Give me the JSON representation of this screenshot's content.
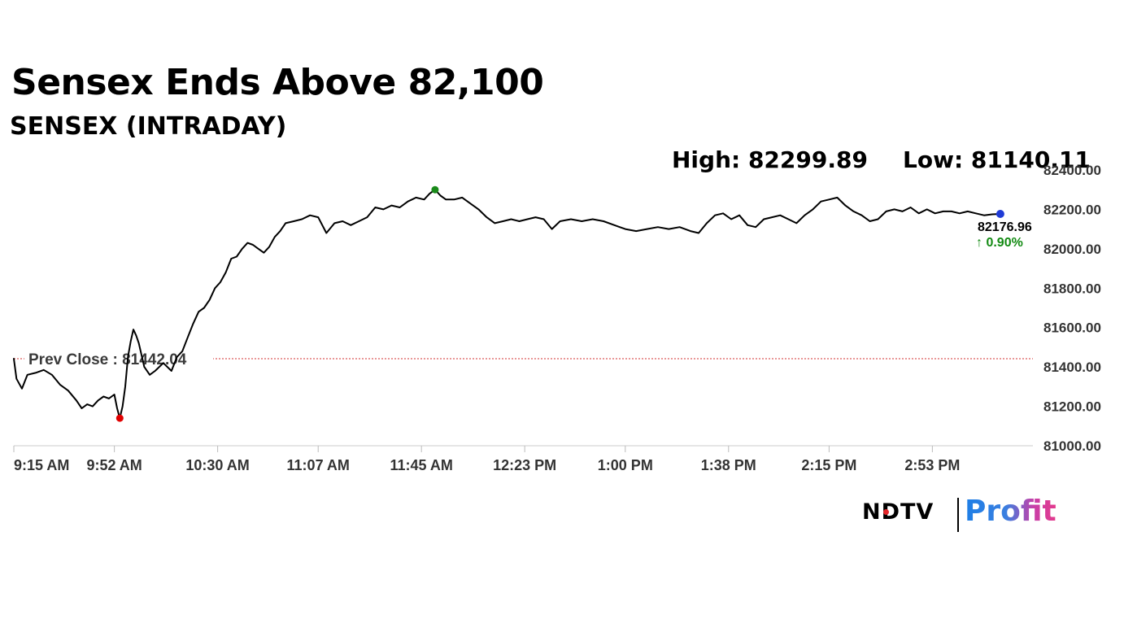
{
  "headline": "Sensex Ends Above 82,100",
  "subtitle": "SENSEX (INTRADAY)",
  "stats": {
    "high": "High: 82299.89",
    "low": "Low: 81140.11"
  },
  "brand": {
    "ndtv": "NDTV",
    "profit": "Profit"
  },
  "colors": {
    "line": "#000000",
    "high_marker": "#1a8a1a",
    "low_marker": "#e00000",
    "last_marker": "#1f3bd6",
    "prev_close_line": "#d33030",
    "change_up": "#128a12"
  },
  "chart_data": {
    "type": "line",
    "title": "SENSEX (INTRADAY)",
    "ylim": [
      81000,
      82400
    ],
    "y_ticks": [
      "82400.00",
      "82200.00",
      "82000.00",
      "81800.00",
      "81600.00",
      "81400.00",
      "81200.00",
      "81000.00"
    ],
    "x_ticks": [
      "9:15 AM",
      "9:52 AM",
      "10:30 AM",
      "11:07 AM",
      "11:45 AM",
      "12:23 PM",
      "1:00 PM",
      "1:38 PM",
      "2:15 PM",
      "2:53 PM"
    ],
    "grid": false,
    "prev_close": {
      "label": "Prev Close : 81442.04",
      "value": 81442.04
    },
    "high": {
      "time": "11:50 AM",
      "value": 82299.89
    },
    "low": {
      "time": "9:54 AM",
      "value": 81140.11
    },
    "last": {
      "value_label": "82176.96",
      "change_label": "↑ 0.90%",
      "value": 82176.96
    },
    "series": [
      {
        "points": [
          [
            "9:15 AM",
            81442
          ],
          [
            "9:16 AM",
            81340
          ],
          [
            "9:18 AM",
            81290
          ],
          [
            "9:20 AM",
            81360
          ],
          [
            "9:23 AM",
            81370
          ],
          [
            "9:26 AM",
            81385
          ],
          [
            "9:29 AM",
            81360
          ],
          [
            "9:32 AM",
            81310
          ],
          [
            "9:35 AM",
            81280
          ],
          [
            "9:38 AM",
            81230
          ],
          [
            "9:40 AM",
            81190
          ],
          [
            "9:42 AM",
            81210
          ],
          [
            "9:44 AM",
            81200
          ],
          [
            "9:46 AM",
            81230
          ],
          [
            "9:48 AM",
            81250
          ],
          [
            "9:50 AM",
            81240
          ],
          [
            "9:52 AM",
            81260
          ],
          [
            "9:53 AM",
            81190
          ],
          [
            "9:54 AM",
            81140
          ],
          [
            "9:55 AM",
            81200
          ],
          [
            "9:56 AM",
            81300
          ],
          [
            "9:57 AM",
            81450
          ],
          [
            "9:58 AM",
            81530
          ],
          [
            "9:59 AM",
            81590
          ],
          [
            "10:00 AM",
            81560
          ],
          [
            "10:01 AM",
            81520
          ],
          [
            "10:03 AM",
            81400
          ],
          [
            "10:05 AM",
            81360
          ],
          [
            "10:07 AM",
            81380
          ],
          [
            "10:10 AM",
            81420
          ],
          [
            "10:13 AM",
            81380
          ],
          [
            "10:15 AM",
            81450
          ],
          [
            "10:17 AM",
            81480
          ],
          [
            "10:19 AM",
            81550
          ],
          [
            "10:21 AM",
            81620
          ],
          [
            "10:23 AM",
            81680
          ],
          [
            "10:25 AM",
            81700
          ],
          [
            "10:27 AM",
            81740
          ],
          [
            "10:29 AM",
            81800
          ],
          [
            "10:31 AM",
            81830
          ],
          [
            "10:33 AM",
            81880
          ],
          [
            "10:35 AM",
            81950
          ],
          [
            "10:37 AM",
            81960
          ],
          [
            "10:39 AM",
            82000
          ],
          [
            "10:41 AM",
            82030
          ],
          [
            "10:43 AM",
            82020
          ],
          [
            "10:45 AM",
            82000
          ],
          [
            "10:47 AM",
            81980
          ],
          [
            "10:49 AM",
            82010
          ],
          [
            "10:51 AM",
            82060
          ],
          [
            "10:53 AM",
            82090
          ],
          [
            "10:55 AM",
            82130
          ],
          [
            "10:58 AM",
            82140
          ],
          [
            "11:01 AM",
            82150
          ],
          [
            "11:04 AM",
            82170
          ],
          [
            "11:07 AM",
            82160
          ],
          [
            "11:10 AM",
            82080
          ],
          [
            "11:13 AM",
            82130
          ],
          [
            "11:16 AM",
            82140
          ],
          [
            "11:19 AM",
            82120
          ],
          [
            "11:22 AM",
            82140
          ],
          [
            "11:25 AM",
            82160
          ],
          [
            "11:28 AM",
            82210
          ],
          [
            "11:31 AM",
            82200
          ],
          [
            "11:34 AM",
            82220
          ],
          [
            "11:37 AM",
            82210
          ],
          [
            "11:40 AM",
            82240
          ],
          [
            "11:43 AM",
            82260
          ],
          [
            "11:46 AM",
            82250
          ],
          [
            "11:48 AM",
            82280
          ],
          [
            "11:50 AM",
            82300
          ],
          [
            "11:52 AM",
            82270
          ],
          [
            "11:54 AM",
            82250
          ],
          [
            "11:57 AM",
            82250
          ],
          [
            "12:00 PM",
            82260
          ],
          [
            "12:03 PM",
            82230
          ],
          [
            "12:06 PM",
            82200
          ],
          [
            "12:09 PM",
            82160
          ],
          [
            "12:12 PM",
            82130
          ],
          [
            "12:15 PM",
            82140
          ],
          [
            "12:18 PM",
            82150
          ],
          [
            "12:21 PM",
            82140
          ],
          [
            "12:24 PM",
            82150
          ],
          [
            "12:27 PM",
            82160
          ],
          [
            "12:30 PM",
            82150
          ],
          [
            "12:33 PM",
            82100
          ],
          [
            "12:36 PM",
            82140
          ],
          [
            "12:40 PM",
            82150
          ],
          [
            "12:44 PM",
            82140
          ],
          [
            "12:48 PM",
            82150
          ],
          [
            "12:52 PM",
            82140
          ],
          [
            "12:56 PM",
            82120
          ],
          [
            "1:00 PM",
            82100
          ],
          [
            "1:04 PM",
            82090
          ],
          [
            "1:08 PM",
            82100
          ],
          [
            "1:12 PM",
            82110
          ],
          [
            "1:16 PM",
            82100
          ],
          [
            "1:20 PM",
            82110
          ],
          [
            "1:24 PM",
            82090
          ],
          [
            "1:27 PM",
            82080
          ],
          [
            "1:30 PM",
            82130
          ],
          [
            "1:33 PM",
            82170
          ],
          [
            "1:36 PM",
            82180
          ],
          [
            "1:39 PM",
            82150
          ],
          [
            "1:42 PM",
            82170
          ],
          [
            "1:45 PM",
            82120
          ],
          [
            "1:48 PM",
            82110
          ],
          [
            "1:51 PM",
            82150
          ],
          [
            "1:54 PM",
            82160
          ],
          [
            "1:57 PM",
            82170
          ],
          [
            "2:00 PM",
            82150
          ],
          [
            "2:03 PM",
            82130
          ],
          [
            "2:06 PM",
            82170
          ],
          [
            "2:09 PM",
            82200
          ],
          [
            "2:12 PM",
            82240
          ],
          [
            "2:15 PM",
            82250
          ],
          [
            "2:18 PM",
            82260
          ],
          [
            "2:21 PM",
            82220
          ],
          [
            "2:24 PM",
            82190
          ],
          [
            "2:27 PM",
            82170
          ],
          [
            "2:30 PM",
            82140
          ],
          [
            "2:33 PM",
            82150
          ],
          [
            "2:36 PM",
            82190
          ],
          [
            "2:39 PM",
            82200
          ],
          [
            "2:42 PM",
            82190
          ],
          [
            "2:45 PM",
            82210
          ],
          [
            "2:48 PM",
            82180
          ],
          [
            "2:51 PM",
            82200
          ],
          [
            "2:54 PM",
            82180
          ],
          [
            "2:57 PM",
            82190
          ],
          [
            "3:00 PM",
            82190
          ],
          [
            "3:03 PM",
            82180
          ],
          [
            "3:06 PM",
            82190
          ],
          [
            "3:09 PM",
            82180
          ],
          [
            "3:12 PM",
            82170
          ],
          [
            "3:15 PM",
            82175
          ],
          [
            "3:18 PM",
            82176.96
          ]
        ]
      }
    ]
  }
}
